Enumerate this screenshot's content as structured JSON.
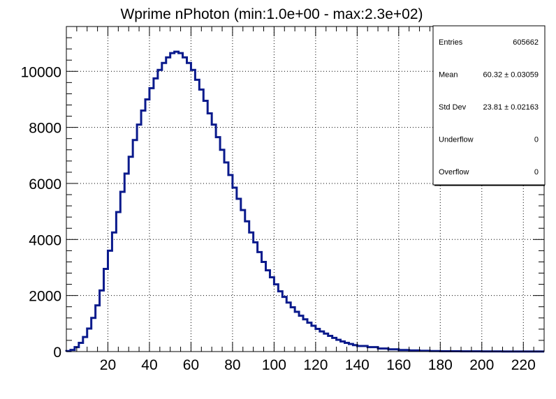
{
  "chart_data": {
    "type": "histogram",
    "title": "Wprime nPhoton (min:1.0e+00 - max:2.3e+02)",
    "xlabel": "",
    "ylabel": "",
    "xlim": [
      0,
      230
    ],
    "ylim": [
      0,
      11600
    ],
    "grid": true,
    "line_color": "#0a1a8c",
    "x_ticks": [
      20,
      40,
      60,
      80,
      100,
      120,
      140,
      160,
      180,
      200,
      220
    ],
    "y_ticks": [
      0,
      2000,
      4000,
      6000,
      8000,
      10000
    ],
    "x_tick_labels": [
      "20",
      "40",
      "60",
      "80",
      "100",
      "120",
      "140",
      "160",
      "180",
      "200",
      "220"
    ],
    "y_tick_labels": [
      "0",
      "2000",
      "4000",
      "6000",
      "8000",
      "10000"
    ],
    "bin_width": 2,
    "bin_starts": [
      0,
      2,
      4,
      6,
      8,
      10,
      12,
      14,
      16,
      18,
      20,
      22,
      24,
      26,
      28,
      30,
      32,
      34,
      36,
      38,
      40,
      42,
      44,
      46,
      48,
      50,
      52,
      54,
      56,
      58,
      60,
      62,
      64,
      66,
      68,
      70,
      72,
      74,
      76,
      78,
      80,
      82,
      84,
      86,
      88,
      90,
      92,
      94,
      96,
      98,
      100,
      102,
      104,
      106,
      108,
      110,
      112,
      114,
      116,
      118,
      120,
      122,
      124,
      126,
      128,
      130,
      132,
      134,
      136,
      138,
      140,
      145,
      150,
      155,
      160,
      165,
      170,
      175,
      180,
      190,
      200,
      210,
      220
    ],
    "counts": [
      20,
      60,
      160,
      310,
      520,
      820,
      1200,
      1650,
      2180,
      2950,
      3600,
      4250,
      4980,
      5700,
      6350,
      6950,
      7550,
      8100,
      8600,
      9000,
      9400,
      9750,
      10050,
      10300,
      10500,
      10650,
      10700,
      10650,
      10500,
      10300,
      10050,
      9700,
      9350,
      8950,
      8500,
      8100,
      7650,
      7200,
      6750,
      6300,
      5850,
      5450,
      5050,
      4650,
      4250,
      3900,
      3550,
      3200,
      2900,
      2650,
      2400,
      2150,
      1950,
      1750,
      1580,
      1420,
      1280,
      1150,
      1030,
      920,
      810,
      720,
      640,
      560,
      490,
      420,
      360,
      310,
      270,
      230,
      200,
      160,
      110,
      80,
      55,
      40,
      28,
      20,
      14,
      8,
      5,
      3,
      2
    ]
  },
  "stats_box": {
    "rows": [
      {
        "label": "Entries",
        "value": "605662"
      },
      {
        "label": "Mean",
        "value": "60.32 ± 0.03059"
      },
      {
        "label": "Std Dev",
        "value": "23.81 ± 0.02163"
      },
      {
        "label": "Underflow",
        "value": "0"
      },
      {
        "label": "Overflow",
        "value": "0"
      }
    ]
  }
}
